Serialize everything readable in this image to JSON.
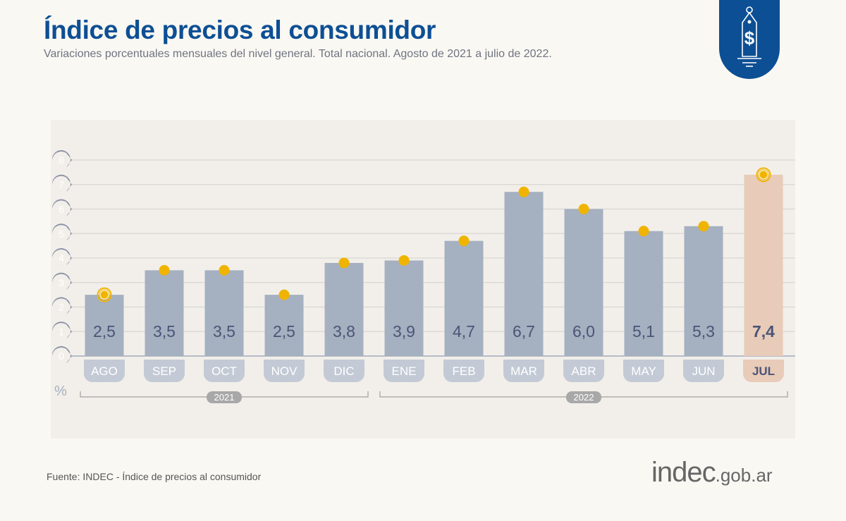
{
  "header": {
    "title": "Índice de precios al consumidor",
    "subtitle": "Variaciones porcentuales mensuales del nivel general. Total nacional. Agosto de 2021 a julio de 2022."
  },
  "badge_icon": "price-tag-dollar-icon",
  "chart_data": {
    "type": "bar",
    "title": "",
    "ylabel": "%",
    "ylim": [
      0,
      8
    ],
    "yticks": [
      0,
      1,
      2,
      3,
      4,
      5,
      6,
      7,
      8
    ],
    "grid": true,
    "categories": [
      "AGO",
      "SEP",
      "OCT",
      "NOV",
      "DIC",
      "ENE",
      "FEB",
      "MAR",
      "ABR",
      "MAY",
      "JUN",
      "JUL"
    ],
    "values": [
      2.5,
      3.5,
      3.5,
      2.5,
      3.8,
      3.9,
      4.7,
      6.7,
      6.0,
      5.1,
      5.3,
      7.4
    ],
    "labels": [
      "2,5",
      "3,5",
      "3,5",
      "2,5",
      "3,8",
      "3,9",
      "4,7",
      "6,7",
      "6,0",
      "5,1",
      "5,3",
      "7,4"
    ],
    "highlight": "JUL",
    "years": [
      {
        "label": "2021",
        "from": 0,
        "to": 4
      },
      {
        "label": "2022",
        "from": 5,
        "to": 11
      }
    ],
    "colors": {
      "bar": "#a5b0c0",
      "highlight_bar": "#e8cbb8",
      "dot": "#f0b400",
      "label": "#4a5578",
      "axis_bubble": "#8a90a6",
      "title": "#0d4f94"
    }
  },
  "footer": {
    "source": "Fuente: INDEC - Índice de precios al consumidor",
    "logo_main": "indec",
    "logo_domain": ".gob.ar"
  }
}
